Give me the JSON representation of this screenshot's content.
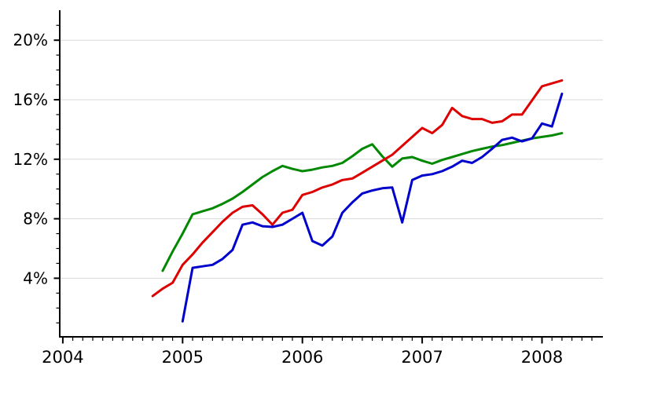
{
  "chart_data": {
    "type": "line",
    "title": "",
    "xlabel": "",
    "ylabel": "",
    "background_color": "#ffffff",
    "grid": "horizontal",
    "gridline_color": "#d8d8d8",
    "axis_color": "#000000",
    "x_axis": {
      "tick_labels": [
        "2004",
        "2005",
        "2006",
        "2007",
        "2008"
      ],
      "tick_year_values": [
        2004,
        2005,
        2006,
        2007,
        2008
      ],
      "minor_ticks": "monthly",
      "range_months": [
        "2004-01",
        "2008-07"
      ]
    },
    "y_axis": {
      "unit": "%",
      "tick_labels": [
        "4%",
        "8%",
        "12%",
        "16%",
        "20%"
      ],
      "tick_values": [
        4,
        8,
        12,
        16,
        20
      ],
      "minor_tick_step": 1,
      "range": [
        0,
        22
      ]
    },
    "series": [
      {
        "name": "green-series",
        "color": "#008800",
        "start_month": "2004-11",
        "values": [
          4.5,
          5.8,
          7.0,
          8.3,
          8.5,
          8.7,
          9.0,
          9.35,
          9.8,
          10.3,
          10.8,
          11.2,
          11.55,
          11.35,
          11.2,
          11.3,
          11.45,
          11.55,
          11.75,
          12.2,
          12.7,
          13.0,
          12.2,
          11.5,
          12.05,
          12.15,
          11.9,
          11.7,
          11.95,
          12.15,
          12.35,
          12.55,
          12.7,
          12.85,
          12.95,
          13.1,
          13.25,
          13.4,
          13.5,
          13.6,
          13.75
        ]
      },
      {
        "name": "red-series",
        "color": "#dd0000",
        "start_month": "2004-10",
        "values": [
          2.8,
          3.3,
          3.7,
          4.9,
          5.6,
          6.4,
          7.1,
          7.8,
          8.4,
          8.8,
          8.9,
          8.3,
          7.6,
          8.4,
          8.6,
          9.6,
          9.8,
          10.1,
          10.3,
          10.6,
          10.7,
          11.1,
          11.5,
          11.9,
          12.3,
          12.9,
          13.5,
          14.1,
          13.75,
          14.3,
          15.45,
          14.9,
          14.7,
          14.7,
          14.45,
          14.55,
          15.0,
          15.0,
          15.95,
          16.9,
          17.1,
          17.3
        ]
      },
      {
        "name": "blue-series",
        "color": "#0000cc",
        "start_month": "2005-01",
        "values": [
          1.1,
          4.7,
          4.8,
          4.9,
          5.3,
          5.9,
          7.6,
          7.75,
          7.5,
          7.45,
          7.6,
          8.0,
          8.4,
          6.5,
          6.2,
          6.8,
          8.4,
          9.1,
          9.7,
          9.9,
          10.05,
          10.1,
          7.75,
          10.6,
          10.9,
          11.0,
          11.2,
          11.5,
          11.9,
          11.75,
          12.15,
          12.7,
          13.3,
          13.45,
          13.2,
          13.4,
          14.4,
          14.2,
          16.4
        ]
      }
    ]
  }
}
